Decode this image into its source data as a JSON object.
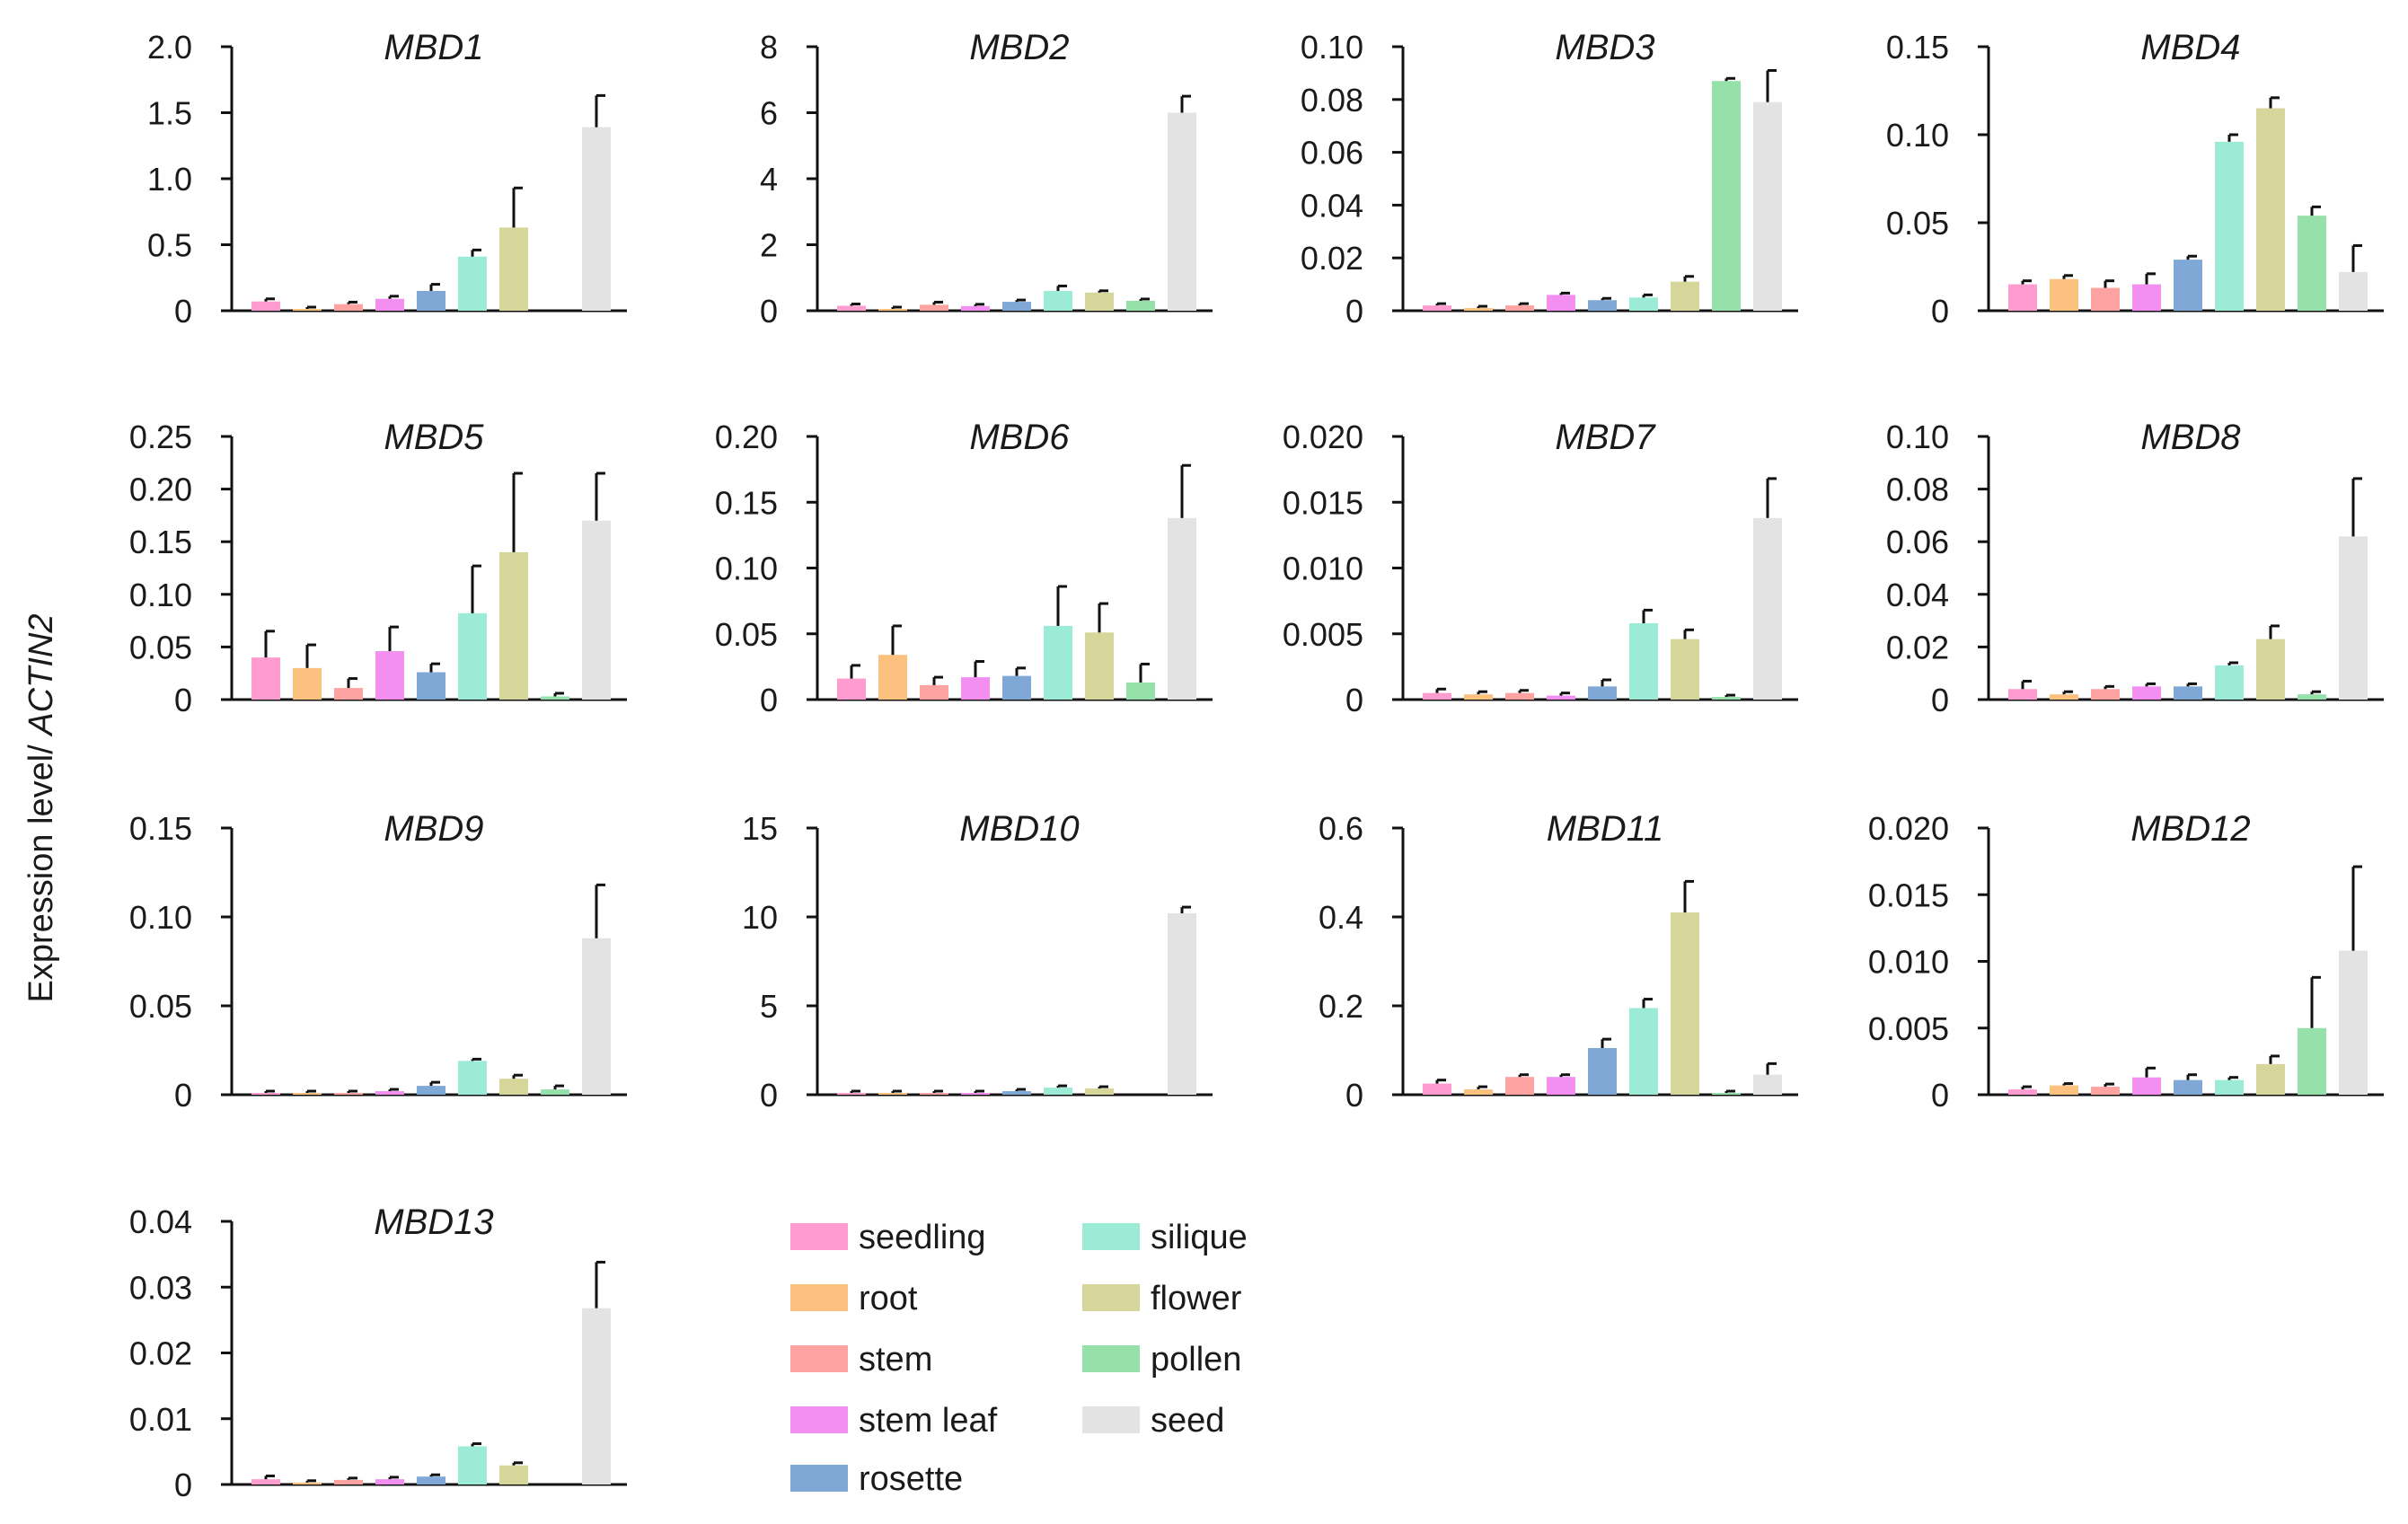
{
  "figure": {
    "ylabel_prefix": "Expression level/ ",
    "ylabel_gene": "ACTIN2"
  },
  "legend": [
    {
      "label": "seedling",
      "color": "#ff9ccf"
    },
    {
      "label": "root",
      "color": "#fcc17e"
    },
    {
      "label": "stem",
      "color": "#ffa2a2"
    },
    {
      "label": "stem leaf",
      "color": "#f28ff0"
    },
    {
      "label": "rosette",
      "color": "#7fa8d6"
    },
    {
      "label": "silique",
      "color": "#9cebd6"
    },
    {
      "label": "flower",
      "color": "#d6d69b"
    },
    {
      "label": "pollen",
      "color": "#96e0aa"
    },
    {
      "label": "seed",
      "color": "#e3e3e3"
    }
  ],
  "chart_data": [
    {
      "type": "bar",
      "title": "MBD1",
      "categories": [
        "seedling",
        "root",
        "stem",
        "stem leaf",
        "rosette",
        "silique",
        "flower",
        "pollen",
        "seed"
      ],
      "values": [
        0.07,
        0.01,
        0.05,
        0.09,
        0.15,
        0.41,
        0.63,
        0.0,
        1.39
      ],
      "errors": [
        0.02,
        0.0,
        0.015,
        0.02,
        0.05,
        0.05,
        0.3,
        0.0,
        0.24
      ],
      "ylim": [
        0,
        2.0
      ],
      "ticks": [
        0,
        0.5,
        1.0,
        1.5,
        2.0
      ],
      "tick_labels": [
        "0",
        "0.5",
        "1.0",
        "1.5",
        "2.0"
      ]
    },
    {
      "type": "bar",
      "title": "MBD2",
      "categories": [
        "seedling",
        "root",
        "stem",
        "stem leaf",
        "rosette",
        "silique",
        "flower",
        "pollen",
        "seed"
      ],
      "values": [
        0.15,
        0.05,
        0.18,
        0.14,
        0.27,
        0.6,
        0.55,
        0.3,
        6.0
      ],
      "errors": [
        0.05,
        0.0,
        0.08,
        0.05,
        0.05,
        0.15,
        0.05,
        0.04,
        0.5
      ],
      "ylim": [
        0,
        8
      ],
      "ticks": [
        0,
        2,
        4,
        6,
        8
      ],
      "tick_labels": [
        "0",
        "2",
        "4",
        "6",
        "8"
      ]
    },
    {
      "type": "bar",
      "title": "MBD3",
      "categories": [
        "seedling",
        "root",
        "stem",
        "stem leaf",
        "rosette",
        "silique",
        "flower",
        "pollen",
        "seed"
      ],
      "values": [
        0.002,
        0.001,
        0.002,
        0.006,
        0.004,
        0.005,
        0.011,
        0.087,
        0.079
      ],
      "errors": [
        0.0005,
        0.0005,
        0.0005,
        0.0005,
        0.0005,
        0.001,
        0.002,
        0.001,
        0.012
      ],
      "ylim": [
        0,
        0.1
      ],
      "ticks": [
        0,
        0.02,
        0.04,
        0.06,
        0.08,
        0.1
      ],
      "tick_labels": [
        "0",
        "0.02",
        "0.04",
        "0.06",
        "0.08",
        "0.10"
      ]
    },
    {
      "type": "bar",
      "title": "MBD4",
      "categories": [
        "seedling",
        "root",
        "stem",
        "stem leaf",
        "rosette",
        "silique",
        "flower",
        "pollen",
        "seed"
      ],
      "values": [
        0.015,
        0.018,
        0.013,
        0.015,
        0.029,
        0.096,
        0.115,
        0.054,
        0.022
      ],
      "errors": [
        0.002,
        0.002,
        0.004,
        0.006,
        0.002,
        0.004,
        0.006,
        0.005,
        0.015
      ],
      "ylim": [
        0,
        0.15
      ],
      "ticks": [
        0,
        0.05,
        0.1,
        0.15
      ],
      "tick_labels": [
        "0",
        "0.05",
        "0.10",
        "0.15"
      ]
    },
    {
      "type": "bar",
      "title": "MBD5",
      "categories": [
        "seedling",
        "root",
        "stem",
        "stem leaf",
        "rosette",
        "silique",
        "flower",
        "pollen",
        "seed"
      ],
      "values": [
        0.04,
        0.03,
        0.011,
        0.046,
        0.026,
        0.082,
        0.14,
        0.003,
        0.17
      ],
      "errors": [
        0.025,
        0.022,
        0.009,
        0.023,
        0.008,
        0.045,
        0.075,
        0.003,
        0.045
      ],
      "ylim": [
        0,
        0.25
      ],
      "ticks": [
        0,
        0.05,
        0.1,
        0.15,
        0.2,
        0.25
      ],
      "tick_labels": [
        "0",
        "0.05",
        "0.10",
        "0.15",
        "0.20",
        "0.25"
      ]
    },
    {
      "type": "bar",
      "title": "MBD6",
      "categories": [
        "seedling",
        "root",
        "stem",
        "stem leaf",
        "rosette",
        "silique",
        "flower",
        "pollen",
        "seed"
      ],
      "values": [
        0.016,
        0.034,
        0.011,
        0.017,
        0.018,
        0.056,
        0.051,
        0.013,
        0.138
      ],
      "errors": [
        0.01,
        0.022,
        0.006,
        0.012,
        0.006,
        0.03,
        0.022,
        0.014,
        0.04
      ],
      "ylim": [
        0,
        0.2
      ],
      "ticks": [
        0,
        0.05,
        0.1,
        0.15,
        0.2
      ],
      "tick_labels": [
        "0",
        "0.05",
        "0.10",
        "0.15",
        "0.20"
      ]
    },
    {
      "type": "bar",
      "title": "MBD7",
      "categories": [
        "seedling",
        "root",
        "stem",
        "stem leaf",
        "rosette",
        "silique",
        "flower",
        "pollen",
        "seed"
      ],
      "values": [
        0.0005,
        0.0004,
        0.0005,
        0.0003,
        0.001,
        0.0058,
        0.0046,
        0.0002,
        0.0138
      ],
      "errors": [
        0.0003,
        0.0002,
        0.0002,
        0.0002,
        0.0005,
        0.001,
        0.0007,
        0.0001,
        0.003
      ],
      "ylim": [
        0,
        0.02
      ],
      "ticks": [
        0,
        0.005,
        0.01,
        0.015,
        0.02
      ],
      "tick_labels": [
        "0",
        "0.005",
        "0.010",
        "0.015",
        "0.020"
      ]
    },
    {
      "type": "bar",
      "title": "MBD8",
      "categories": [
        "seedling",
        "root",
        "stem",
        "stem leaf",
        "rosette",
        "silique",
        "flower",
        "pollen",
        "seed"
      ],
      "values": [
        0.004,
        0.002,
        0.004,
        0.005,
        0.005,
        0.013,
        0.023,
        0.002,
        0.062
      ],
      "errors": [
        0.003,
        0.001,
        0.001,
        0.001,
        0.001,
        0.001,
        0.005,
        0.001,
        0.022
      ],
      "ylim": [
        0,
        0.1
      ],
      "ticks": [
        0,
        0.02,
        0.04,
        0.06,
        0.08,
        0.1
      ],
      "tick_labels": [
        "0",
        "0.02",
        "0.04",
        "0.06",
        "0.08",
        "0.10"
      ]
    },
    {
      "type": "bar",
      "title": "MBD9",
      "categories": [
        "seedling",
        "root",
        "stem",
        "stem leaf",
        "rosette",
        "silique",
        "flower",
        "pollen",
        "seed"
      ],
      "values": [
        0.001,
        0.001,
        0.001,
        0.002,
        0.005,
        0.019,
        0.009,
        0.003,
        0.088
      ],
      "errors": [
        0.0005,
        0.0005,
        0.0005,
        0.001,
        0.002,
        0.001,
        0.002,
        0.002,
        0.03
      ],
      "ylim": [
        0,
        0.15
      ],
      "ticks": [
        0,
        0.05,
        0.1,
        0.15
      ],
      "tick_labels": [
        "0",
        "0.05",
        "0.10",
        "0.15"
      ]
    },
    {
      "type": "bar",
      "title": "MBD10",
      "categories": [
        "seedling",
        "root",
        "stem",
        "stem leaf",
        "rosette",
        "silique",
        "flower",
        "pollen",
        "seed"
      ],
      "values": [
        0.1,
        0.03,
        0.05,
        0.1,
        0.2,
        0.4,
        0.35,
        0.0,
        10.2
      ],
      "errors": [
        0.05,
        0.0,
        0.03,
        0.05,
        0.08,
        0.1,
        0.1,
        0.0,
        0.35
      ],
      "ylim": [
        0,
        15
      ],
      "ticks": [
        0,
        5,
        10,
        15
      ],
      "tick_labels": [
        "0",
        "5",
        "10",
        "15"
      ]
    },
    {
      "type": "bar",
      "title": "MBD11",
      "categories": [
        "seedling",
        "root",
        "stem",
        "stem leaf",
        "rosette",
        "silique",
        "flower",
        "pollen",
        "seed"
      ],
      "values": [
        0.025,
        0.012,
        0.04,
        0.04,
        0.105,
        0.195,
        0.41,
        0.002,
        0.045
      ],
      "errors": [
        0.008,
        0.006,
        0.005,
        0.005,
        0.02,
        0.02,
        0.07,
        0.001,
        0.025
      ],
      "ylim": [
        0,
        0.6
      ],
      "ticks": [
        0,
        0.2,
        0.4,
        0.6
      ],
      "tick_labels": [
        "0",
        "0.2",
        "0.4",
        "0.6"
      ]
    },
    {
      "type": "bar",
      "title": "MBD12",
      "categories": [
        "seedling",
        "root",
        "stem",
        "stem leaf",
        "rosette",
        "silique",
        "flower",
        "pollen",
        "seed"
      ],
      "values": [
        0.0004,
        0.0007,
        0.0006,
        0.0013,
        0.0011,
        0.0011,
        0.0023,
        0.005,
        0.0108
      ],
      "errors": [
        0.0002,
        0.0001,
        0.0002,
        0.0007,
        0.0004,
        0.0002,
        0.0006,
        0.0038,
        0.0063
      ],
      "ylim": [
        0,
        0.02
      ],
      "ticks": [
        0,
        0.005,
        0.01,
        0.015,
        0.02
      ],
      "tick_labels": [
        "0",
        "0.005",
        "0.010",
        "0.015",
        "0.020"
      ]
    },
    {
      "type": "bar",
      "title": "MBD13",
      "categories": [
        "seedling",
        "root",
        "stem",
        "stem leaf",
        "rosette",
        "silique",
        "flower",
        "pollen",
        "seed"
      ],
      "values": [
        0.0008,
        0.0003,
        0.0007,
        0.0008,
        0.0012,
        0.0058,
        0.0029,
        0.0,
        0.0268
      ],
      "errors": [
        0.0005,
        0.0001,
        0.0002,
        0.0003,
        0.0002,
        0.0004,
        0.0004,
        0.0,
        0.007
      ],
      "ylim": [
        0,
        0.04
      ],
      "ticks": [
        0,
        0.01,
        0.02,
        0.03,
        0.04
      ],
      "tick_labels": [
        "0",
        "0.01",
        "0.02",
        "0.03",
        "0.04"
      ]
    }
  ]
}
